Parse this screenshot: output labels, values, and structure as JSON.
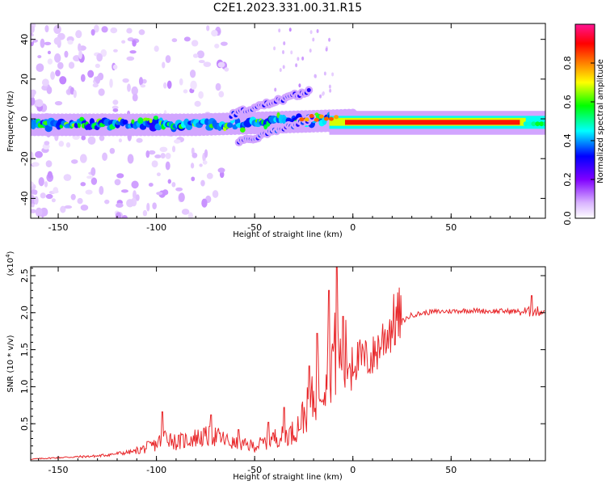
{
  "title": "C2E1.2023.331.00.31.R15",
  "chart_data": [
    {
      "type": "heatmap",
      "name": "spectrogram",
      "xlabel": "Height of straight line (km)",
      "ylabel": "Frequency (Hz)",
      "xlim": [
        -164,
        98
      ],
      "ylim": [
        -50,
        48
      ],
      "xticks": [
        -150,
        -100,
        -50,
        0,
        50
      ],
      "yticks": [
        40,
        20,
        0,
        -20,
        -40
      ],
      "colorbar": {
        "label": "Normalized spectral amplitude",
        "range": [
          0,
          1
        ],
        "ticks": [
          "0.0",
          "0.2",
          "0.4",
          "0.6",
          "0.8"
        ],
        "colormap": [
          "#ffffff",
          "#d9b3ff",
          "#8000ff",
          "#0000ff",
          "#00ffff",
          "#00ff00",
          "#ffff00",
          "#ff8000",
          "#ff0000",
          "#ff1493"
        ]
      },
      "features": [
        {
          "component": "main echo band",
          "x_range": [
            -164,
            0
          ],
          "y_center": -3,
          "amplitude": "0.3-0.6"
        },
        {
          "component": "upward branch",
          "x_range": [
            -62,
            -20
          ],
          "y_start": 2,
          "y_end": 14
        },
        {
          "component": "downward branch",
          "x_range": [
            -58,
            -20
          ],
          "y_start": -12,
          "y_end": 0
        },
        {
          "component": "direct signal",
          "x_range": [
            -25,
            98
          ],
          "y_center": -2,
          "amplitude": "0.8-1.0"
        }
      ]
    },
    {
      "type": "line",
      "name": "snr",
      "xlabel": "Height of straight line (km)",
      "ylabel": "SNR (10 * v/v)",
      "yscale_note": "(x10^4)",
      "xlim": [
        -164,
        98
      ],
      "ylim": [
        0,
        2.62
      ],
      "xticks": [
        -150,
        -100,
        -50,
        0,
        50
      ],
      "yticks": [
        "0.5",
        "1.0",
        "1.5",
        "2.0",
        "2.5"
      ],
      "color": "#e8272a",
      "x": [
        -164,
        -150,
        -130,
        -110,
        -100,
        -95,
        -90,
        -80,
        -70,
        -60,
        -50,
        -45,
        -40,
        -35,
        -30,
        -25,
        -20,
        -18,
        -15,
        -12,
        -10,
        -8,
        -5,
        0,
        5,
        10,
        15,
        20,
        25,
        30,
        40,
        50,
        60,
        70,
        80,
        90,
        95,
        98
      ],
      "y": [
        0.02,
        0.04,
        0.06,
        0.12,
        0.2,
        0.32,
        0.22,
        0.28,
        0.3,
        0.2,
        0.18,
        0.22,
        0.28,
        0.3,
        0.35,
        0.55,
        0.75,
        0.9,
        1.05,
        1.2,
        1.3,
        1.25,
        1.2,
        1.28,
        1.3,
        1.32,
        1.55,
        1.75,
        1.88,
        1.97,
        2.01,
        2.02,
        2.03,
        2.02,
        2.02,
        2.01,
        2.02,
        2.02
      ],
      "spikes": [
        {
          "x": -97,
          "y": 0.66
        },
        {
          "x": -72,
          "y": 0.62
        },
        {
          "x": -58,
          "y": 0.42
        },
        {
          "x": -43,
          "y": 0.52
        },
        {
          "x": -35,
          "y": 0.72
        },
        {
          "x": -22,
          "y": 1.28
        },
        {
          "x": -18,
          "y": 1.72
        },
        {
          "x": -12,
          "y": 2.3
        },
        {
          "x": -8,
          "y": 2.62
        },
        {
          "x": -5,
          "y": 1.95
        },
        {
          "x": 91,
          "y": 2.23
        }
      ]
    }
  ]
}
